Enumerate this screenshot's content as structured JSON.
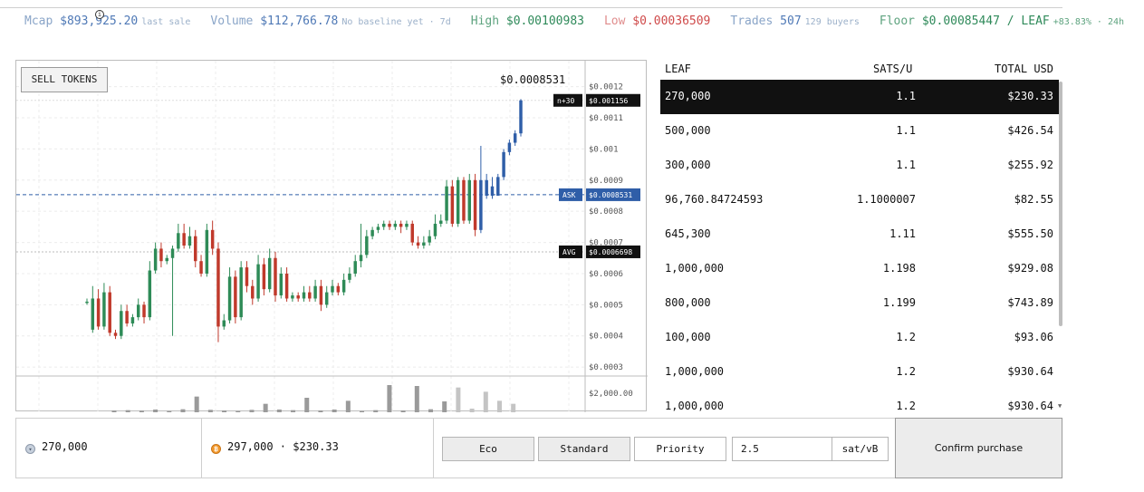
{
  "stats": [
    {
      "label": "Mcap",
      "value": "$893,925.20",
      "sub": "last sale",
      "kind": "mcap"
    },
    {
      "label": "Volume",
      "value": "$112,766.78",
      "sub": "No baseline yet · 7d",
      "kind": "volume"
    },
    {
      "label": "High",
      "value": "$0.00100983",
      "sub": "",
      "kind": "high"
    },
    {
      "label": "Low",
      "value": "$0.00036509",
      "sub": "",
      "kind": "low"
    },
    {
      "label": "Trades",
      "value": "507",
      "sub": "129 buyers",
      "kind": "trades"
    },
    {
      "label": "Floor",
      "value": "$0.00085447 / LEAF",
      "sub": "+83.83% · 24h",
      "kind": "floor"
    }
  ],
  "info_icon": "info-icon",
  "chart": {
    "sell_button": "SELL TOKENS",
    "last_price": "$0.0008531",
    "price_ticks": [
      {
        "label": "$0.0012",
        "v": 0.0012
      },
      {
        "label": "$0.0011",
        "v": 0.0011
      },
      {
        "label": "$0.001",
        "v": 0.001
      },
      {
        "label": "$0.0009",
        "v": 0.0009
      },
      {
        "label": "$0.0008",
        "v": 0.0008
      },
      {
        "label": "$0.0007",
        "v": 0.0007
      },
      {
        "label": "$0.0006",
        "v": 0.0006
      },
      {
        "label": "$0.0005",
        "v": 0.0005
      },
      {
        "label": "$0.0004",
        "v": 0.0004
      },
      {
        "label": "$0.0003",
        "v": 0.0003
      }
    ],
    "volume_tick": "$2,000.00",
    "markers": [
      {
        "kind": "now",
        "tag": "n+30",
        "label": "$0.001156",
        "v": 0.001156
      },
      {
        "kind": "ask",
        "tag": "ASK",
        "label": "$0.0008531",
        "v": 0.0008531
      },
      {
        "kind": "avg",
        "tag": "AVG",
        "label": "$0.0006698",
        "v": 0.0006698
      }
    ],
    "colors": {
      "up": "#2e8b57",
      "down": "#c0392b",
      "recent": "#2f5ea8",
      "ask_line": "#2f5ea8",
      "volume": "#9a9a9a"
    }
  },
  "chart_data": {
    "type": "candlestick",
    "ylim": [
      0.00028,
      0.00126
    ],
    "ask": 0.0008531,
    "avg": 0.0006698,
    "candles": [
      [
        0.00051,
        0.00051,
        0.00052,
        0.0005
      ],
      [
        0.00042,
        0.00052,
        0.00056,
        0.00041
      ],
      [
        0.00052,
        0.00043,
        0.00055,
        0.00042
      ],
      [
        0.00043,
        0.00054,
        0.00057,
        0.00042
      ],
      [
        0.00054,
        0.00041,
        0.00056,
        0.0004
      ],
      [
        0.00041,
        0.0004,
        0.00042,
        0.00039
      ],
      [
        0.0004,
        0.00048,
        0.0005,
        0.00039
      ],
      [
        0.00048,
        0.00044,
        0.0005,
        0.00043
      ],
      [
        0.00044,
        0.00046,
        0.00047,
        0.00043
      ],
      [
        0.00046,
        0.0005,
        0.00052,
        0.00045
      ],
      [
        0.0005,
        0.00046,
        0.00051,
        0.00044
      ],
      [
        0.00046,
        0.00061,
        0.00064,
        0.00045
      ],
      [
        0.00061,
        0.00068,
        0.0007,
        0.0006
      ],
      [
        0.00068,
        0.00064,
        0.0007,
        0.00062
      ],
      [
        0.00064,
        0.00065,
        0.00066,
        0.00063
      ],
      [
        0.00065,
        0.00068,
        0.00069,
        0.0004
      ],
      [
        0.00068,
        0.00073,
        0.00076,
        0.00067
      ],
      [
        0.00073,
        0.00069,
        0.00076,
        0.00068
      ],
      [
        0.00069,
        0.00072,
        0.00075,
        0.00068
      ],
      [
        0.00072,
        0.00064,
        0.00074,
        0.00062
      ],
      [
        0.00064,
        0.0006,
        0.00066,
        0.00059
      ],
      [
        0.0006,
        0.00074,
        0.00076,
        0.00059
      ],
      [
        0.00074,
        0.00068,
        0.00077,
        0.00066
      ],
      [
        0.00068,
        0.00043,
        0.0007,
        0.00038
      ],
      [
        0.00043,
        0.00045,
        0.00047,
        0.00042
      ],
      [
        0.00045,
        0.00059,
        0.00062,
        0.00044
      ],
      [
        0.00059,
        0.00046,
        0.00061,
        0.00044
      ],
      [
        0.00046,
        0.00062,
        0.00064,
        0.00045
      ],
      [
        0.00062,
        0.00056,
        0.00064,
        0.00054
      ],
      [
        0.00056,
        0.00052,
        0.00058,
        0.0005
      ],
      [
        0.00052,
        0.00063,
        0.00066,
        0.00051
      ],
      [
        0.00063,
        0.00055,
        0.00065,
        0.00053
      ],
      [
        0.00055,
        0.00065,
        0.00068,
        0.00054
      ],
      [
        0.00065,
        0.00053,
        0.00067,
        0.00051
      ],
      [
        0.00053,
        0.0006,
        0.00062,
        0.00052
      ],
      [
        0.0006,
        0.00052,
        0.00062,
        0.00051
      ],
      [
        0.00052,
        0.00053,
        0.00054,
        0.00051
      ],
      [
        0.00053,
        0.00052,
        0.00054,
        0.00051
      ],
      [
        0.00052,
        0.00054,
        0.00056,
        0.00051
      ],
      [
        0.00054,
        0.00052,
        0.00056,
        0.00051
      ],
      [
        0.00052,
        0.00056,
        0.00058,
        0.00051
      ],
      [
        0.00056,
        0.0005,
        0.00058,
        0.00048
      ],
      [
        0.0005,
        0.00054,
        0.00056,
        0.00049
      ],
      [
        0.00054,
        0.00056,
        0.00058,
        0.00053
      ],
      [
        0.00056,
        0.00054,
        0.00057,
        0.00053
      ],
      [
        0.00054,
        0.00058,
        0.0006,
        0.00053
      ],
      [
        0.00058,
        0.0006,
        0.00062,
        0.00057
      ],
      [
        0.0006,
        0.00064,
        0.00066,
        0.00059
      ],
      [
        0.00064,
        0.00066,
        0.00076,
        0.00062
      ],
      [
        0.00066,
        0.00072,
        0.00074,
        0.00065
      ],
      [
        0.00072,
        0.00074,
        0.00075,
        0.00071
      ],
      [
        0.00074,
        0.00075,
        0.00076,
        0.00073
      ],
      [
        0.00075,
        0.00076,
        0.00077,
        0.00074
      ],
      [
        0.00076,
        0.00075,
        0.00077,
        0.00074
      ],
      [
        0.00075,
        0.00076,
        0.00077,
        0.00074
      ],
      [
        0.00076,
        0.00075,
        0.00077,
        0.00073
      ],
      [
        0.00075,
        0.00076,
        0.00077,
        0.00074
      ],
      [
        0.00076,
        0.0007,
        0.00077,
        0.00069
      ],
      [
        0.0007,
        0.00069,
        0.00072,
        0.00068
      ],
      [
        0.00069,
        0.0007,
        0.00072,
        0.00068
      ],
      [
        0.0007,
        0.00072,
        0.00074,
        0.00069
      ],
      [
        0.00072,
        0.00076,
        0.00079,
        0.00071
      ],
      [
        0.00076,
        0.00077,
        0.00079,
        0.00075
      ],
      [
        0.00077,
        0.00088,
        0.0009,
        0.00076
      ],
      [
        0.00088,
        0.00076,
        0.0009,
        0.00075
      ],
      [
        0.00076,
        0.0009,
        0.00091,
        0.00075
      ],
      [
        0.0009,
        0.00077,
        0.00091,
        0.00076
      ],
      [
        0.00077,
        0.0009,
        0.00092,
        0.00076
      ],
      [
        0.0009,
        0.00074,
        0.00092,
        0.00072
      ],
      [
        0.00074,
        0.0009,
        0.00101,
        0.00073
      ],
      [
        0.0009,
        0.00085,
        0.00092,
        0.00084
      ],
      [
        0.00085,
        0.00088,
        0.00091,
        0.00084
      ],
      [
        0.00085,
        0.00091,
        0.00092,
        0.00085
      ],
      [
        0.00091,
        0.00099,
        0.001,
        0.0009
      ],
      [
        0.00099,
        0.00102,
        0.00103,
        0.00098
      ],
      [
        0.00102,
        0.00105,
        0.00106,
        0.00101
      ],
      [
        0.00105,
        0.001156,
        0.00116,
        0.00104
      ]
    ],
    "volumes": [
      60,
      70,
      55,
      90,
      40,
      100,
      520,
      80,
      60,
      40,
      80,
      280,
      90,
      70,
      480,
      60,
      90,
      380,
      40,
      70,
      900,
      60,
      870,
      100,
      360,
      820,
      120,
      680,
      380,
      280
    ]
  },
  "book": {
    "headers": {
      "leaf": "LEAF",
      "sats": "SATS/U",
      "total": "TOTAL USD"
    },
    "rows": [
      {
        "leaf": "270,000",
        "sats": "1.1",
        "total": "$230.33",
        "selected": true
      },
      {
        "leaf": "500,000",
        "sats": "1.1",
        "total": "$426.54"
      },
      {
        "leaf": "300,000",
        "sats": "1.1",
        "total": "$255.92"
      },
      {
        "leaf": "96,760.84724593",
        "sats": "1.1000007",
        "total": "$82.55"
      },
      {
        "leaf": "645,300",
        "sats": "1.11",
        "total": "$555.50"
      },
      {
        "leaf": "1,000,000",
        "sats": "1.198",
        "total": "$929.08"
      },
      {
        "leaf": "800,000",
        "sats": "1.199",
        "total": "$743.89"
      },
      {
        "leaf": "100,000",
        "sats": "1.2",
        "total": "$93.06"
      },
      {
        "leaf": "1,000,000",
        "sats": "1.2",
        "total": "$930.64"
      },
      {
        "leaf": "1,000,000",
        "sats": "1.2",
        "total": "$930.64"
      }
    ]
  },
  "order": {
    "leaf_amount": "270,000",
    "btc_amount": "297,000 · $230.33",
    "fee_options": [
      "Eco",
      "Standard",
      "Priority"
    ],
    "fee_rate": "2.5",
    "fee_unit": "sat/vB",
    "confirm_label": "Confirm purchase"
  }
}
